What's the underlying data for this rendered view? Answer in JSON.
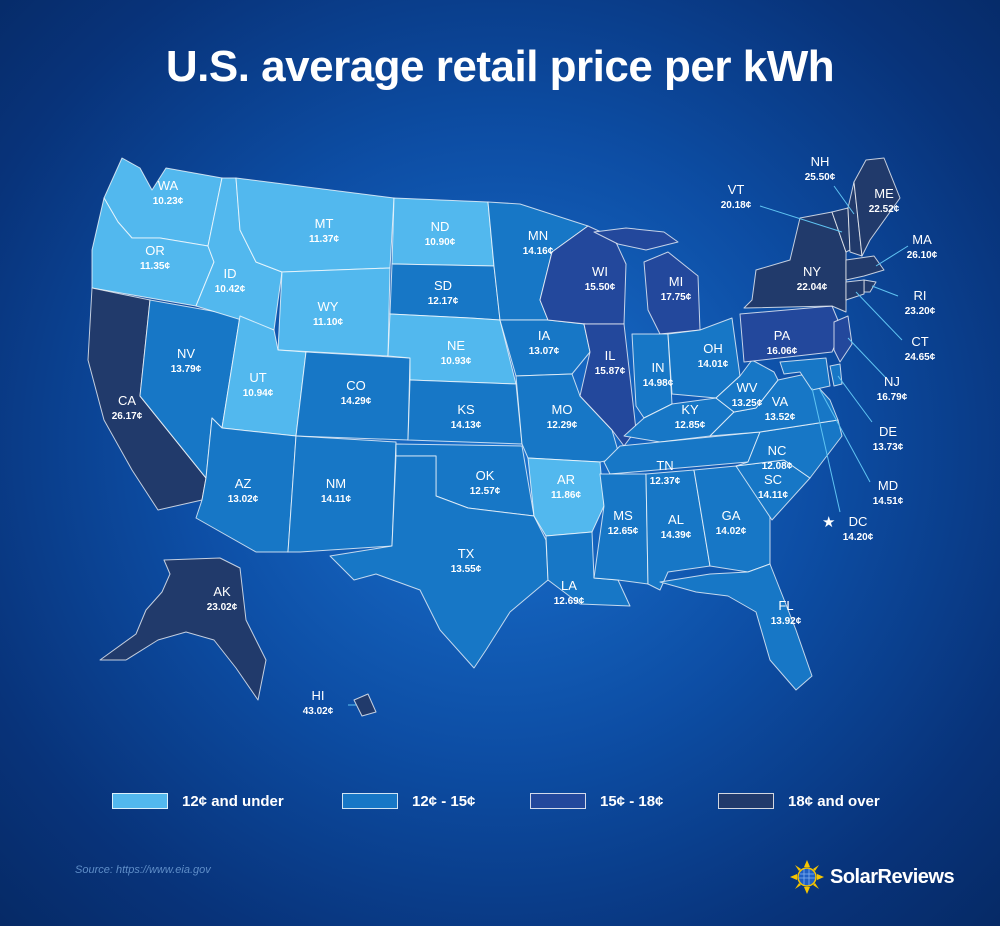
{
  "title": "U.S. average retail price per kWh",
  "legend": [
    {
      "label": "12¢ and under",
      "color": "#52b8ee"
    },
    {
      "label": "12¢ - 15¢",
      "color": "#1777c6"
    },
    {
      "label": "15¢ - 18¢",
      "color": "#23489c"
    },
    {
      "label": "18¢ and over",
      "color": "#213a6b"
    }
  ],
  "states": [
    {
      "code": "WA",
      "price": "10.23¢",
      "tier": 0
    },
    {
      "code": "OR",
      "price": "11.35¢",
      "tier": 0
    },
    {
      "code": "CA",
      "price": "26.17¢",
      "tier": 3
    },
    {
      "code": "NV",
      "price": "13.79¢",
      "tier": 1
    },
    {
      "code": "ID",
      "price": "10.42¢",
      "tier": 0
    },
    {
      "code": "MT",
      "price": "11.37¢",
      "tier": 0
    },
    {
      "code": "WY",
      "price": "11.10¢",
      "tier": 0
    },
    {
      "code": "UT",
      "price": "10.94¢",
      "tier": 0
    },
    {
      "code": "AZ",
      "price": "13.02¢",
      "tier": 1
    },
    {
      "code": "CO",
      "price": "14.29¢",
      "tier": 1
    },
    {
      "code": "NM",
      "price": "14.11¢",
      "tier": 1
    },
    {
      "code": "ND",
      "price": "10.90¢",
      "tier": 0
    },
    {
      "code": "SD",
      "price": "12.17¢",
      "tier": 1
    },
    {
      "code": "NE",
      "price": "10.93¢",
      "tier": 0
    },
    {
      "code": "KS",
      "price": "14.13¢",
      "tier": 1
    },
    {
      "code": "OK",
      "price": "12.57¢",
      "tier": 1
    },
    {
      "code": "TX",
      "price": "13.55¢",
      "tier": 1
    },
    {
      "code": "MN",
      "price": "14.16¢",
      "tier": 1
    },
    {
      "code": "IA",
      "price": "13.07¢",
      "tier": 1
    },
    {
      "code": "MO",
      "price": "12.29¢",
      "tier": 1
    },
    {
      "code": "AR",
      "price": "11.86¢",
      "tier": 0
    },
    {
      "code": "LA",
      "price": "12.69¢",
      "tier": 1
    },
    {
      "code": "WI",
      "price": "15.50¢",
      "tier": 2
    },
    {
      "code": "IL",
      "price": "15.87¢",
      "tier": 2
    },
    {
      "code": "MI",
      "price": "17.75¢",
      "tier": 2
    },
    {
      "code": "IN",
      "price": "14.98¢",
      "tier": 1
    },
    {
      "code": "OH",
      "price": "14.01¢",
      "tier": 1
    },
    {
      "code": "KY",
      "price": "12.85¢",
      "tier": 1
    },
    {
      "code": "TN",
      "price": "12.37¢",
      "tier": 1
    },
    {
      "code": "MS",
      "price": "12.65¢",
      "tier": 1
    },
    {
      "code": "AL",
      "price": "14.39¢",
      "tier": 1
    },
    {
      "code": "GA",
      "price": "14.02¢",
      "tier": 1
    },
    {
      "code": "FL",
      "price": "13.92¢",
      "tier": 1
    },
    {
      "code": "SC",
      "price": "14.11¢",
      "tier": 1
    },
    {
      "code": "NC",
      "price": "12.08¢",
      "tier": 1
    },
    {
      "code": "VA",
      "price": "13.52¢",
      "tier": 1
    },
    {
      "code": "WV",
      "price": "13.25¢",
      "tier": 1
    },
    {
      "code": "PA",
      "price": "16.06¢",
      "tier": 2
    },
    {
      "code": "NY",
      "price": "22.04¢",
      "tier": 3
    },
    {
      "code": "VT",
      "price": "20.18¢",
      "tier": 3
    },
    {
      "code": "NH",
      "price": "25.50¢",
      "tier": 3
    },
    {
      "code": "ME",
      "price": "22.52¢",
      "tier": 3
    },
    {
      "code": "MA",
      "price": "26.10¢",
      "tier": 3
    },
    {
      "code": "RI",
      "price": "23.20¢",
      "tier": 3
    },
    {
      "code": "CT",
      "price": "24.65¢",
      "tier": 3
    },
    {
      "code": "NJ",
      "price": "16.79¢",
      "tier": 2
    },
    {
      "code": "DE",
      "price": "13.73¢",
      "tier": 1
    },
    {
      "code": "MD",
      "price": "14.51¢",
      "tier": 1
    },
    {
      "code": "DC",
      "price": "14.20¢",
      "tier": 1
    },
    {
      "code": "AK",
      "price": "23.02¢",
      "tier": 3
    },
    {
      "code": "HI",
      "price": "43.02¢",
      "tier": 3
    }
  ],
  "source": "Source: https://www.eia.gov",
  "brand": "SolarReviews"
}
